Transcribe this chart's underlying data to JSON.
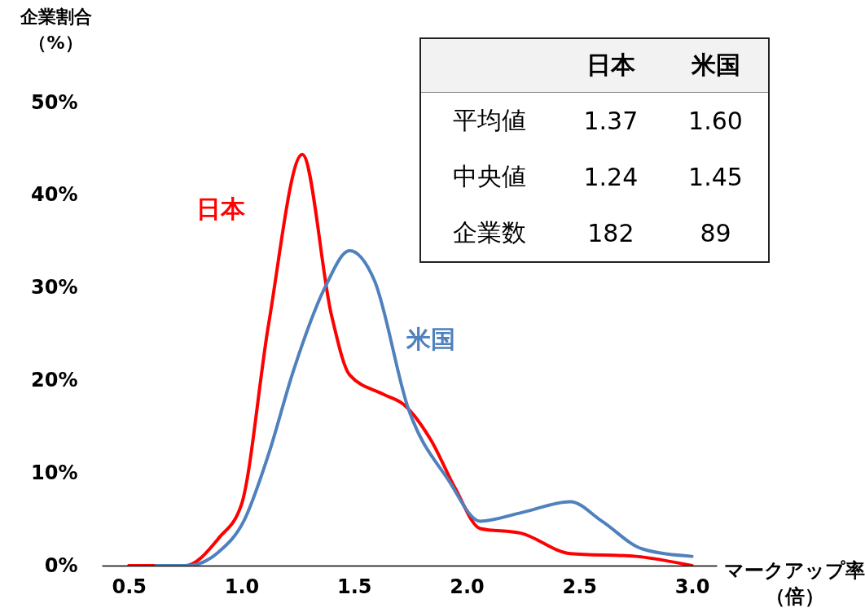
{
  "chart_data": {
    "type": "line",
    "xlabel": "マークアップ率（倍）",
    "ylabel": "企業割合（%）",
    "xlim": [
      0.38,
      3.11
    ],
    "xticks": [
      {
        "value": 0.5,
        "label": "0.5"
      },
      {
        "value": 1,
        "label": "1.0"
      },
      {
        "value": 1.5,
        "label": "1.5"
      },
      {
        "value": 2,
        "label": "2.0"
      },
      {
        "value": 2.5,
        "label": "2.5"
      },
      {
        "value": 3,
        "label": "3.0"
      }
    ],
    "ylim": [
      0,
      50
    ],
    "yticks": [
      {
        "value": 0,
        "label": "0%"
      },
      {
        "value": 10,
        "label": "10%"
      },
      {
        "value": 20,
        "label": "20%"
      },
      {
        "value": 30,
        "label": "30%"
      },
      {
        "value": 40,
        "label": "40%"
      },
      {
        "value": 50,
        "label": "50%"
      }
    ],
    "legend": false,
    "series": [
      {
        "name": "日本",
        "color": "#ff0000",
        "x": [
          0.5,
          0.62,
          0.75,
          0.9,
          1.0,
          1.12,
          1.27,
          1.4,
          1.48,
          1.63,
          1.72,
          1.84,
          1.95,
          2.06,
          2.24,
          2.46,
          2.75,
          3.0
        ],
        "values": [
          0,
          0,
          0,
          3,
          6.6,
          26,
          44.4,
          27,
          20.6,
          18.5,
          17.4,
          13.6,
          8.3,
          4,
          3.5,
          1.3,
          1,
          0
        ]
      },
      {
        "name": "米国",
        "color": "#4f81bd",
        "x": [
          0.62,
          0.76,
          0.9,
          1.01,
          1.12,
          1.23,
          1.37,
          1.48,
          1.59,
          1.74,
          1.92,
          2.06,
          2.24,
          2.46,
          2.6,
          2.78,
          3.0
        ],
        "values": [
          0,
          0,
          1.5,
          4.8,
          12,
          21,
          30,
          34,
          30.8,
          17,
          9.2,
          4.8,
          5.7,
          6.9,
          4.8,
          1.8,
          1
        ]
      }
    ],
    "annotations": [
      "日本",
      "米国",
      "平均値",
      "1.37",
      "1.60",
      "中央値",
      "1.24",
      "1.45",
      "企業数",
      "182",
      "89"
    ]
  }
}
